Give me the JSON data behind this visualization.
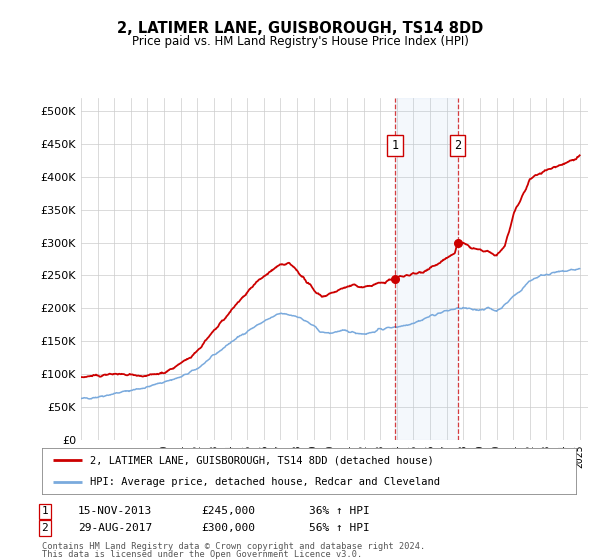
{
  "title": "2, LATIMER LANE, GUISBOROUGH, TS14 8DD",
  "subtitle": "Price paid vs. HM Land Registry's House Price Index (HPI)",
  "ylim": [
    0,
    520000
  ],
  "yticks": [
    0,
    50000,
    100000,
    150000,
    200000,
    250000,
    300000,
    350000,
    400000,
    450000,
    500000
  ],
  "xlim_start": 1995.0,
  "xlim_end": 2025.5,
  "sale1_date": 2013.88,
  "sale1_price": 245000,
  "sale1_label": "1",
  "sale1_text": "15-NOV-2013",
  "sale1_amount": "£245,000",
  "sale1_hpi": "36% ↑ HPI",
  "sale2_date": 2017.66,
  "sale2_price": 300000,
  "sale2_label": "2",
  "sale2_text": "29-AUG-2017",
  "sale2_amount": "£300,000",
  "sale2_hpi": "56% ↑ HPI",
  "line_color_property": "#cc0000",
  "line_color_hpi": "#7aaadd",
  "legend_label_property": "2, LATIMER LANE, GUISBOROUGH, TS14 8DD (detached house)",
  "legend_label_hpi": "HPI: Average price, detached house, Redcar and Cleveland",
  "footer1": "Contains HM Land Registry data © Crown copyright and database right 2024.",
  "footer2": "This data is licensed under the Open Government Licence v3.0.",
  "background_color": "#ffffff",
  "grid_color": "#cccccc",
  "hpi_anchors_x": [
    1995.0,
    1996.0,
    1997.0,
    1998.0,
    1999.0,
    2000.0,
    2001.0,
    2002.0,
    2003.0,
    2004.0,
    2005.0,
    2006.0,
    2007.0,
    2008.0,
    2008.8,
    2009.5,
    2010.0,
    2010.5,
    2011.0,
    2011.5,
    2012.0,
    2012.5,
    2013.0,
    2013.5,
    2014.0,
    2014.5,
    2015.0,
    2015.5,
    2016.0,
    2016.5,
    2017.0,
    2017.5,
    2018.0,
    2018.5,
    2019.0,
    2019.5,
    2020.0,
    2020.5,
    2021.0,
    2021.5,
    2022.0,
    2022.5,
    2023.0,
    2023.5,
    2024.0,
    2024.5,
    2025.0
  ],
  "hpi_anchors_y": [
    62000,
    65000,
    70000,
    75000,
    80000,
    88000,
    95000,
    108000,
    128000,
    148000,
    165000,
    180000,
    192000,
    188000,
    176000,
    163000,
    162000,
    165000,
    165000,
    163000,
    161000,
    163000,
    168000,
    170000,
    172000,
    174000,
    178000,
    182000,
    188000,
    192000,
    196000,
    199000,
    200000,
    198000,
    198000,
    200000,
    196000,
    205000,
    218000,
    228000,
    242000,
    248000,
    252000,
    254000,
    256000,
    258000,
    260000
  ],
  "prop_anchors_x": [
    1995.0,
    1996.0,
    1997.0,
    1998.0,
    1998.5,
    1999.0,
    2000.0,
    2001.0,
    2002.0,
    2003.0,
    2004.0,
    2005.0,
    2005.5,
    2006.0,
    2006.5,
    2007.0,
    2007.5,
    2008.0,
    2008.5,
    2009.0,
    2009.5,
    2010.0,
    2010.5,
    2011.0,
    2011.5,
    2012.0,
    2012.5,
    2013.0,
    2013.5,
    2013.88,
    2014.0,
    2014.5,
    2015.0,
    2015.5,
    2016.0,
    2016.5,
    2017.0,
    2017.5,
    2017.66,
    2018.0,
    2018.5,
    2019.0,
    2019.5,
    2020.0,
    2020.5,
    2021.0,
    2021.5,
    2022.0,
    2022.5,
    2023.0,
    2023.5,
    2024.0,
    2024.5,
    2025.0
  ],
  "prop_anchors_y": [
    95000,
    97000,
    100000,
    98000,
    95000,
    97000,
    102000,
    115000,
    135000,
    165000,
    195000,
    225000,
    238000,
    248000,
    258000,
    265000,
    268000,
    258000,
    242000,
    228000,
    218000,
    222000,
    228000,
    232000,
    235000,
    232000,
    235000,
    238000,
    242000,
    245000,
    246000,
    250000,
    252000,
    255000,
    262000,
    268000,
    275000,
    285000,
    300000,
    298000,
    292000,
    288000,
    285000,
    280000,
    295000,
    340000,
    368000,
    395000,
    405000,
    410000,
    415000,
    420000,
    425000,
    432000
  ]
}
